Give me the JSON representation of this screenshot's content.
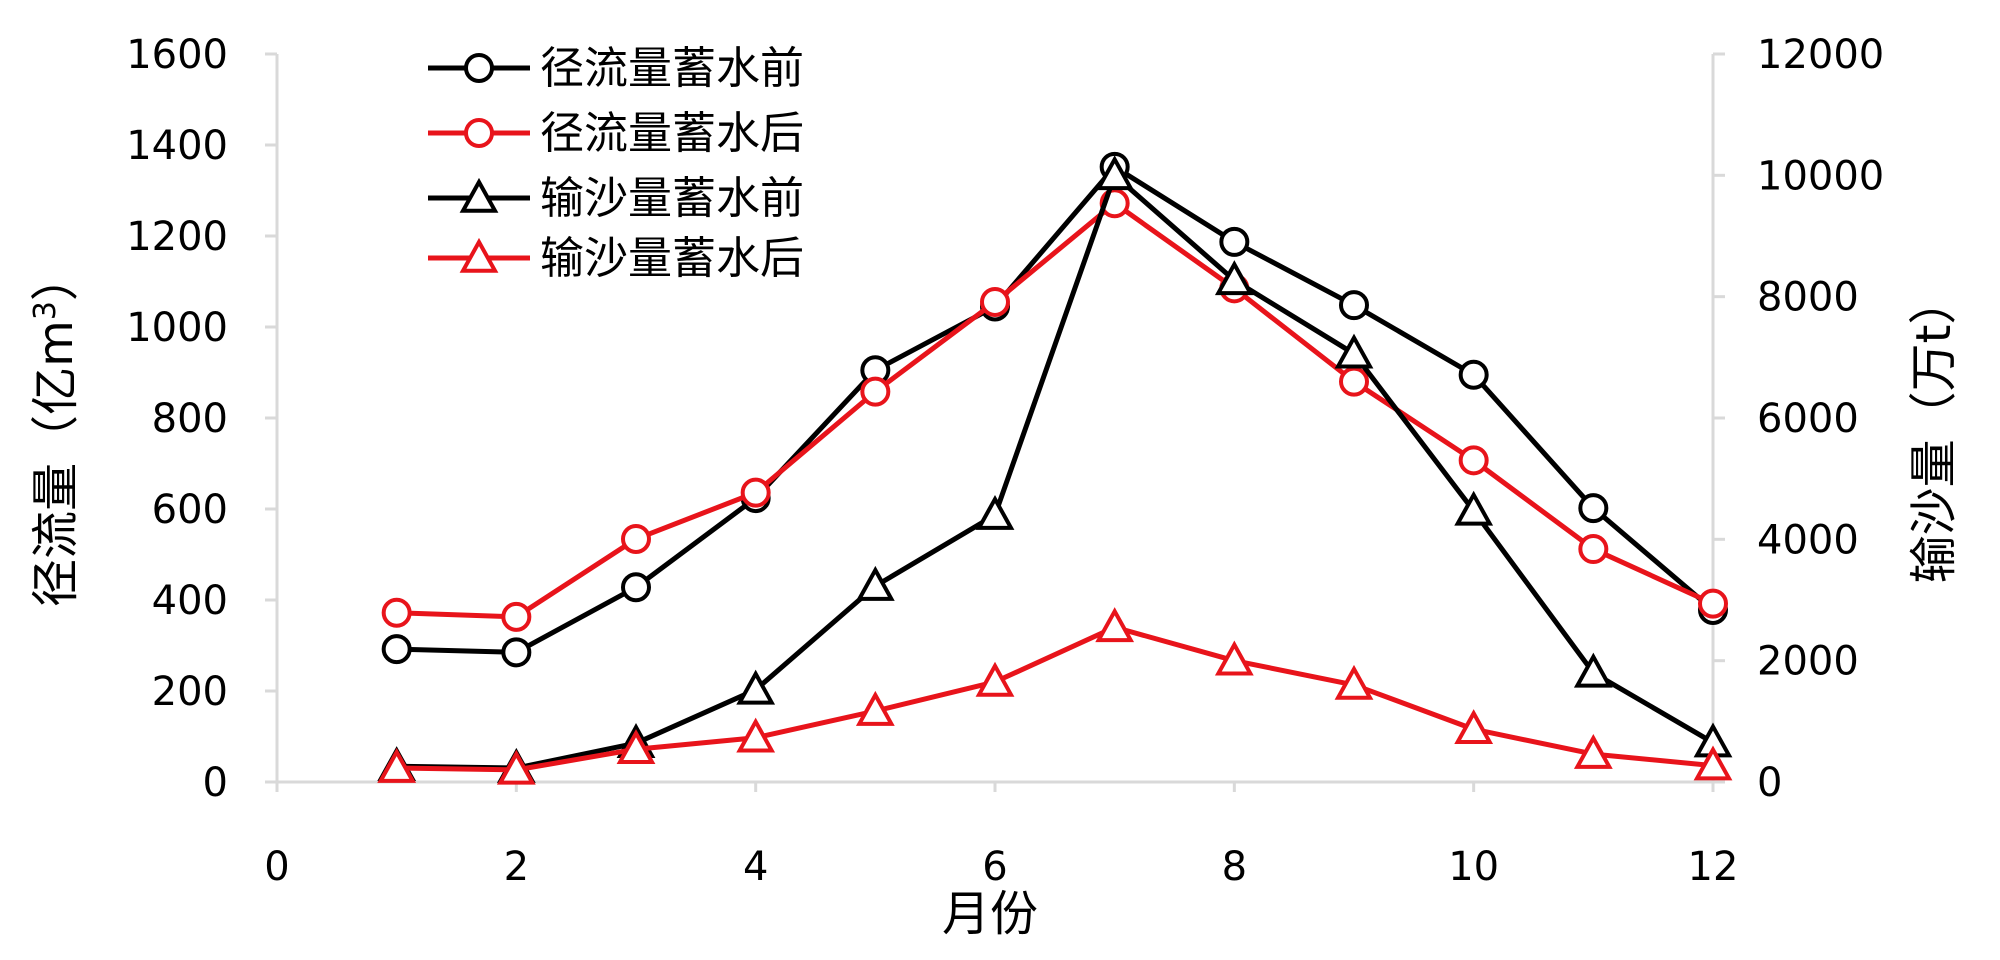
{
  "chart_data": {
    "type": "line",
    "xlabel": "月份",
    "ylabel_left_main": "径流量（亿m",
    "ylabel_left_sup": "3",
    "ylabel_left_close": "）",
    "ylabel_right": "输沙量（万t）",
    "x": [
      1,
      2,
      3,
      4,
      5,
      6,
      7,
      8,
      9,
      10,
      11,
      12
    ],
    "xlim": [
      0,
      12
    ],
    "x_ticks": [
      "0",
      "2",
      "4",
      "6",
      "8",
      "10",
      "12"
    ],
    "ylim_left": [
      0,
      1600
    ],
    "y_ticks_left": [
      "0",
      "200",
      "400",
      "600",
      "800",
      "1000",
      "1200",
      "1400",
      "1600"
    ],
    "ylim_right": [
      0,
      12000
    ],
    "y_ticks_right": [
      "0",
      "2000",
      "4000",
      "6000",
      "8000",
      "10000",
      "12000"
    ],
    "legend_position": "top-left",
    "series": [
      {
        "name": "径流量蓄水前",
        "axis": "left",
        "marker": "circle",
        "color": "#000000",
        "values": [
          292,
          285,
          428,
          624,
          905,
          1045,
          1352,
          1187,
          1048,
          895,
          602,
          378
        ]
      },
      {
        "name": "径流量蓄水后",
        "axis": "left",
        "marker": "circle",
        "color": "#e8141b",
        "values": [
          372,
          363,
          534,
          636,
          858,
          1055,
          1272,
          1085,
          880,
          707,
          512,
          392
        ]
      },
      {
        "name": "输沙量蓄水前",
        "axis": "right",
        "marker": "triangle",
        "color": "#000000",
        "values": [
          260,
          230,
          640,
          1520,
          3230,
          4400,
          10000,
          8270,
          7060,
          4470,
          1800,
          650
        ]
      },
      {
        "name": "输沙量蓄水后",
        "axis": "right",
        "marker": "triangle",
        "color": "#e8141b",
        "values": [
          230,
          200,
          540,
          730,
          1170,
          1650,
          2550,
          2000,
          1600,
          870,
          460,
          270
        ]
      }
    ]
  }
}
